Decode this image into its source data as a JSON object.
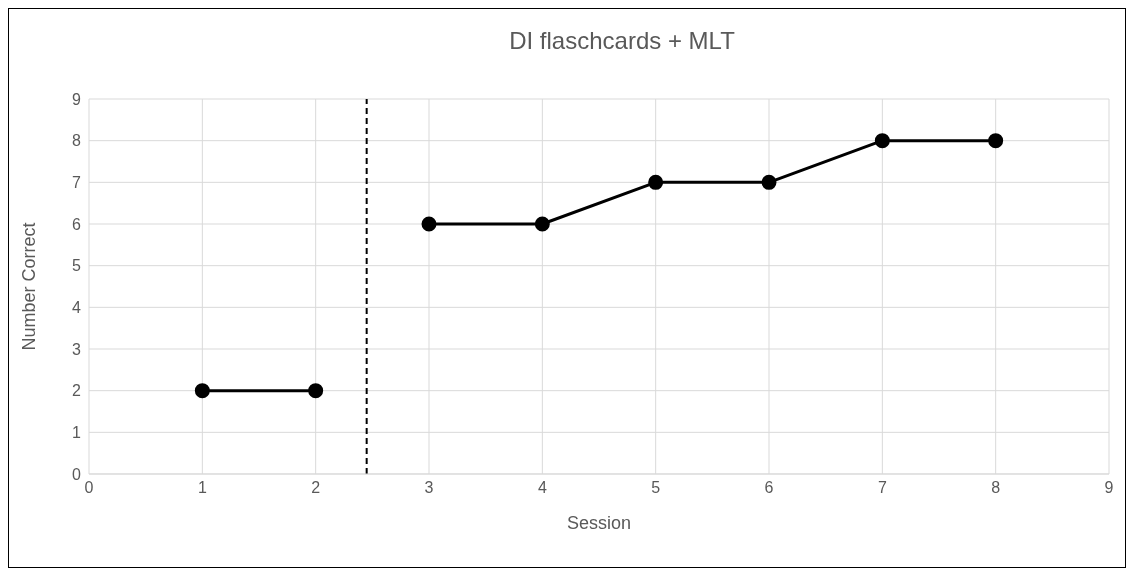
{
  "chart_data": {
    "type": "line",
    "title": "DI flaschcards + MLT",
    "xlabel": "Session",
    "ylabel": "Number Correct",
    "series": [
      {
        "color": "#000000",
        "x": [
          1,
          2
        ],
        "values": [
          2,
          2
        ]
      },
      {
        "color": "#000000",
        "x": [
          3,
          4,
          5,
          6,
          7,
          8
        ],
        "values": [
          6,
          6,
          7,
          7,
          8,
          8
        ]
      }
    ],
    "xlim": [
      0,
      9
    ],
    "xticks": [
      0,
      1,
      2,
      3,
      4,
      5,
      6,
      7,
      8,
      9
    ],
    "ylim": [
      0,
      9
    ],
    "yticks": [
      0,
      1,
      2,
      3,
      4,
      5,
      6,
      7,
      8,
      9
    ],
    "ref_lines": [
      {
        "axis": "x",
        "value": 2.45,
        "color": "#000000",
        "line_style": "dashed"
      }
    ],
    "grid": true,
    "marker": "circle",
    "line_style": "solid"
  }
}
